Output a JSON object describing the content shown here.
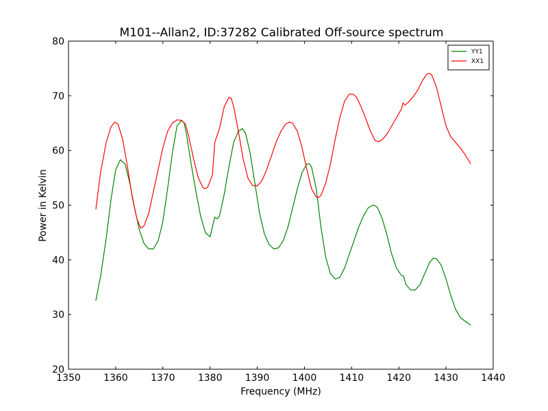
{
  "chart_data": {
    "type": "line",
    "title": "M101--Allan2, ID:37282 Calibrated Off-source spectrum",
    "xlabel": "Frequency (MHz)",
    "ylabel": "Power in Kelvin",
    "xlim": [
      1350,
      1440
    ],
    "ylim": [
      20,
      80
    ],
    "xticks": [
      1350,
      1360,
      1370,
      1380,
      1390,
      1400,
      1410,
      1420,
      1430,
      1440
    ],
    "yticks": [
      20,
      30,
      40,
      50,
      60,
      70,
      80
    ],
    "grid": false,
    "legend_position": "top-right",
    "series": [
      {
        "name": "YY1",
        "color": "#008000",
        "x": [
          1355.8,
          1356.8,
          1358.0,
          1359.0,
          1360.0,
          1361.0,
          1362.0,
          1363.0,
          1364.0,
          1365.0,
          1366.0,
          1367.0,
          1368.0,
          1369.0,
          1370.0,
          1371.0,
          1372.0,
          1373.0,
          1374.0,
          1374.5,
          1375.0,
          1376.0,
          1377.0,
          1378.0,
          1379.0,
          1380.0,
          1380.5,
          1381.0,
          1381.5,
          1382.0,
          1383.0,
          1384.0,
          1385.0,
          1386.0,
          1386.8,
          1387.5,
          1388.5,
          1389.5,
          1390.5,
          1391.5,
          1392.5,
          1393.5,
          1394.5,
          1395.5,
          1396.5,
          1397.5,
          1398.5,
          1399.5,
          1400.5,
          1401.0,
          1401.5,
          1402.5,
          1403.5,
          1404.5,
          1405.5,
          1406.5,
          1407.5,
          1408.5,
          1409.5,
          1410.5,
          1411.5,
          1412.5,
          1413.5,
          1414.5,
          1415.0,
          1415.5,
          1416.5,
          1417.5,
          1418.5,
          1419.5,
          1420.5,
          1421.0,
          1421.5,
          1422.5,
          1423.5,
          1424.5,
          1425.5,
          1426.5,
          1427.3,
          1428.0,
          1429.0,
          1430.0,
          1431.0,
          1432.0,
          1433.0,
          1434.0,
          1435.2
        ],
        "y": [
          32.6,
          37.0,
          44.0,
          51.0,
          56.5,
          58.3,
          57.5,
          54.0,
          49.5,
          45.5,
          43.0,
          42.0,
          42.0,
          43.5,
          47.0,
          53.0,
          59.5,
          64.5,
          65.5,
          65.0,
          63.0,
          57.5,
          52.5,
          48.0,
          45.0,
          44.2,
          46.0,
          47.8,
          47.5,
          48.0,
          52.0,
          57.0,
          61.5,
          63.5,
          64.0,
          63.2,
          59.5,
          54.0,
          48.5,
          44.8,
          42.8,
          42.0,
          42.2,
          43.5,
          46.0,
          49.5,
          53.0,
          56.0,
          57.5,
          57.6,
          57.0,
          53.0,
          46.0,
          40.5,
          37.5,
          36.5,
          36.8,
          38.5,
          41.0,
          43.5,
          46.0,
          48.0,
          49.5,
          50.0,
          49.9,
          49.5,
          47.5,
          44.5,
          41.0,
          38.5,
          37.2,
          37.0,
          35.5,
          34.5,
          34.5,
          35.5,
          37.5,
          39.5,
          40.3,
          40.2,
          39.0,
          36.5,
          33.5,
          31.0,
          29.5,
          28.8,
          28.1
        ]
      },
      {
        "name": "XX1",
        "color": "#ff0000",
        "x": [
          1355.8,
          1356.8,
          1358.0,
          1359.0,
          1359.8,
          1360.5,
          1361.5,
          1362.5,
          1363.5,
          1364.5,
          1365.3,
          1366.0,
          1367.0,
          1368.0,
          1369.0,
          1370.0,
          1371.0,
          1372.0,
          1373.0,
          1374.0,
          1374.8,
          1375.5,
          1376.5,
          1377.5,
          1378.5,
          1379.0,
          1379.5,
          1380.5,
          1381.0,
          1382.0,
          1383.0,
          1384.0,
          1384.5,
          1385.0,
          1386.0,
          1387.0,
          1388.0,
          1389.0,
          1390.0,
          1391.0,
          1392.0,
          1393.0,
          1394.0,
          1395.0,
          1396.0,
          1396.8,
          1397.5,
          1398.5,
          1399.5,
          1400.5,
          1401.5,
          1402.5,
          1403.0,
          1403.5,
          1404.5,
          1405.5,
          1406.5,
          1407.5,
          1408.5,
          1409.5,
          1410.3,
          1411.0,
          1412.0,
          1413.0,
          1414.0,
          1415.0,
          1415.8,
          1416.5,
          1417.5,
          1418.5,
          1419.5,
          1420.5,
          1420.9,
          1421.3,
          1422.0,
          1423.0,
          1424.0,
          1425.0,
          1426.0,
          1426.5,
          1427.0,
          1428.0,
          1429.0,
          1430.0,
          1431.0,
          1432.0,
          1433.0,
          1434.0,
          1435.2
        ],
        "y": [
          49.3,
          56.0,
          61.5,
          64.3,
          65.2,
          64.8,
          62.0,
          57.0,
          51.5,
          47.5,
          45.8,
          46.2,
          48.5,
          52.5,
          56.5,
          60.5,
          63.5,
          65.0,
          65.6,
          65.5,
          64.8,
          62.5,
          58.5,
          55.0,
          53.2,
          53.0,
          53.3,
          55.5,
          61.5,
          64.0,
          68.0,
          69.7,
          69.5,
          68.0,
          63.5,
          58.5,
          55.0,
          53.6,
          53.5,
          54.5,
          56.5,
          59.0,
          61.5,
          63.5,
          64.8,
          65.2,
          65.0,
          63.5,
          60.5,
          56.5,
          53.0,
          51.5,
          51.4,
          51.8,
          54.0,
          57.5,
          62.0,
          66.0,
          69.0,
          70.3,
          70.3,
          69.8,
          68.0,
          65.8,
          63.5,
          61.8,
          61.6,
          62.0,
          63.0,
          64.5,
          66.0,
          67.5,
          68.7,
          68.3,
          68.8,
          69.8,
          71.0,
          72.8,
          74.0,
          74.1,
          73.8,
          71.5,
          68.0,
          64.5,
          62.5,
          61.5,
          60.5,
          59.3,
          57.6
        ]
      }
    ]
  }
}
